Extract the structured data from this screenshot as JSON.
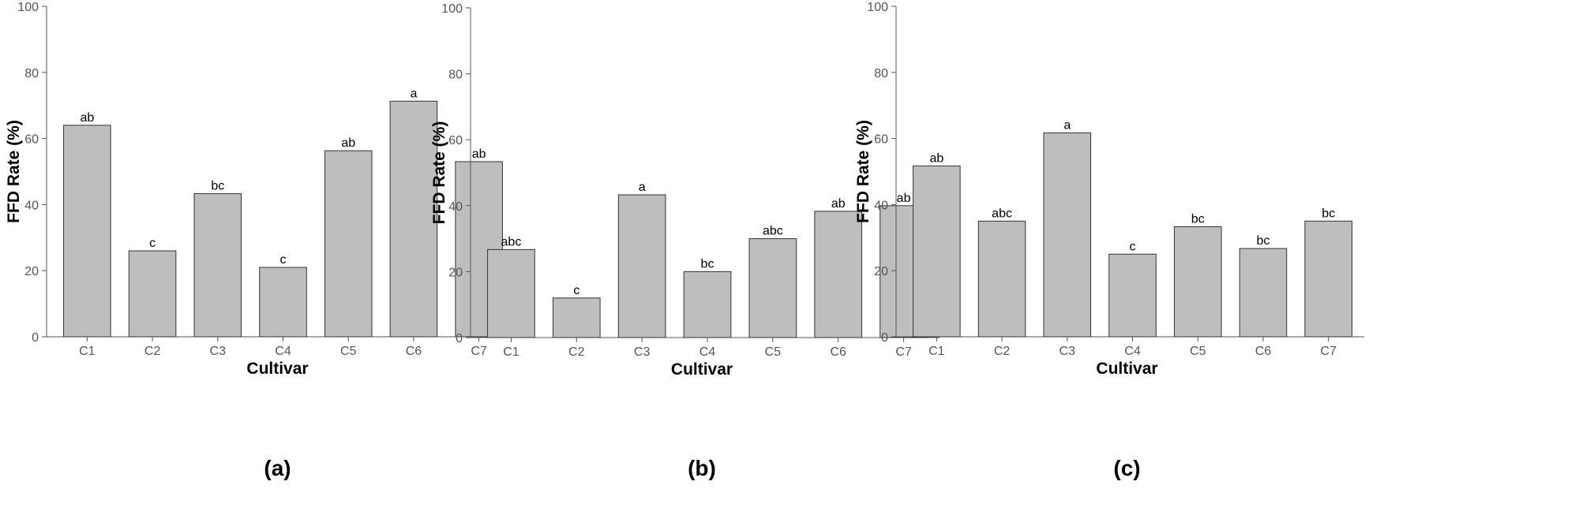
{
  "chart_data": [
    {
      "type": "bar",
      "panel_label": "(a)",
      "xlabel": "Cultivar",
      "ylabel": "FFD Rate (%)",
      "ylim": [
        0,
        100
      ],
      "yticks": [
        0,
        20,
        40,
        60,
        80,
        100
      ],
      "categories": [
        "C1",
        "C2",
        "C3",
        "C4",
        "C5",
        "C6",
        "C7"
      ],
      "values": [
        64,
        26,
        43.3,
        21,
        56.3,
        71.3,
        53
      ],
      "letters": [
        "ab",
        "c",
        "bc",
        "c",
        "ab",
        "a",
        "ab"
      ],
      "bar_color": "#bebebe",
      "grid": false
    },
    {
      "type": "bar",
      "panel_label": "(b)",
      "xlabel": "Cultivar",
      "ylabel": "FFD Rate (%)",
      "ylim": [
        0,
        100
      ],
      "yticks": [
        0,
        20,
        40,
        60,
        80,
        100
      ],
      "categories": [
        "C1",
        "C2",
        "C3",
        "C4",
        "C5",
        "C6",
        "C7"
      ],
      "values": [
        26.7,
        12,
        43.3,
        20,
        30,
        38.3,
        40
      ],
      "letters": [
        "abc",
        "c",
        "a",
        "bc",
        "abc",
        "ab",
        "ab"
      ],
      "bar_color": "#bebebe",
      "grid": false
    },
    {
      "type": "bar",
      "panel_label": "(c)",
      "xlabel": "Cultivar",
      "ylabel": "FFD Rate (%)",
      "ylim": [
        0,
        100
      ],
      "yticks": [
        0,
        20,
        40,
        60,
        80,
        100
      ],
      "categories": [
        "C1",
        "C2",
        "C3",
        "C4",
        "C5",
        "C6",
        "C7"
      ],
      "values": [
        51.7,
        35,
        61.7,
        25,
        33.3,
        26.7,
        35
      ],
      "letters": [
        "ab",
        "abc",
        "a",
        "c",
        "bc",
        "bc",
        "bc"
      ],
      "bar_color": "#bebebe",
      "grid": false
    }
  ]
}
